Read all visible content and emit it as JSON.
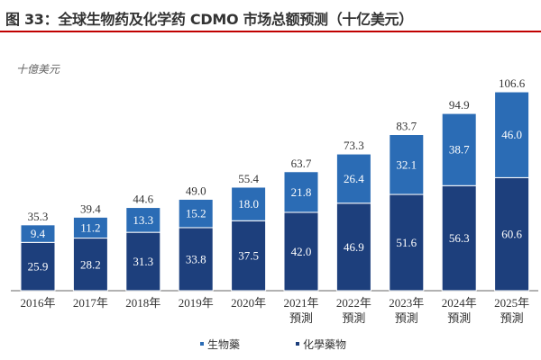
{
  "title": "图 33：全球生物药及化学药 CDMO 市场总额预测（十亿美元）",
  "chart_data": {
    "type": "bar",
    "stacked": true,
    "ylabel": "十億美元",
    "ylim": [
      0,
      110
    ],
    "grid": false,
    "legend_position": "bottom",
    "categories": [
      [
        "2016年"
      ],
      [
        "2017年"
      ],
      [
        "2018年"
      ],
      [
        "2019年"
      ],
      [
        "2020年"
      ],
      [
        "2021年",
        "預測"
      ],
      [
        "2022年",
        "預測"
      ],
      [
        "2023年",
        "預測"
      ],
      [
        "2024年",
        "預測"
      ],
      [
        "2025年",
        "預測"
      ]
    ],
    "series": [
      {
        "name": "化學藥物",
        "color": "#1d3f7c",
        "values": [
          25.9,
          28.2,
          31.3,
          33.8,
          37.5,
          42.0,
          46.9,
          51.6,
          56.3,
          60.6
        ]
      },
      {
        "name": "生物藥",
        "color": "#2b6cb5",
        "values": [
          9.4,
          11.2,
          13.3,
          15.2,
          18.0,
          21.8,
          26.4,
          32.1,
          38.7,
          46.0
        ]
      }
    ],
    "totals": [
      35.3,
      39.4,
      44.6,
      49.0,
      55.4,
      63.7,
      73.3,
      83.7,
      94.9,
      106.6
    ]
  }
}
